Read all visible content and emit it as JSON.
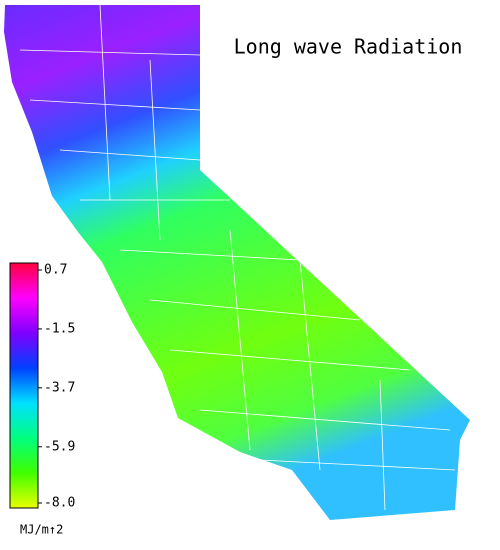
{
  "title": "Long wave Radiation",
  "colorbar": {
    "lim": [
      -8,
      0.7
    ],
    "ticks": [
      0.7,
      -1.5,
      -3.7,
      -5.9,
      {
        "value": -8,
        "label": "-8.0"
      }
    ],
    "colors": [
      "#e8ff00",
      "#40ff00",
      "#00ff80",
      "#00e0ff",
      "#0040ff",
      "#8000ff",
      "#ff00ff",
      "#ff0040"
    ],
    "unit": "MJ/m↑2"
  }
}
